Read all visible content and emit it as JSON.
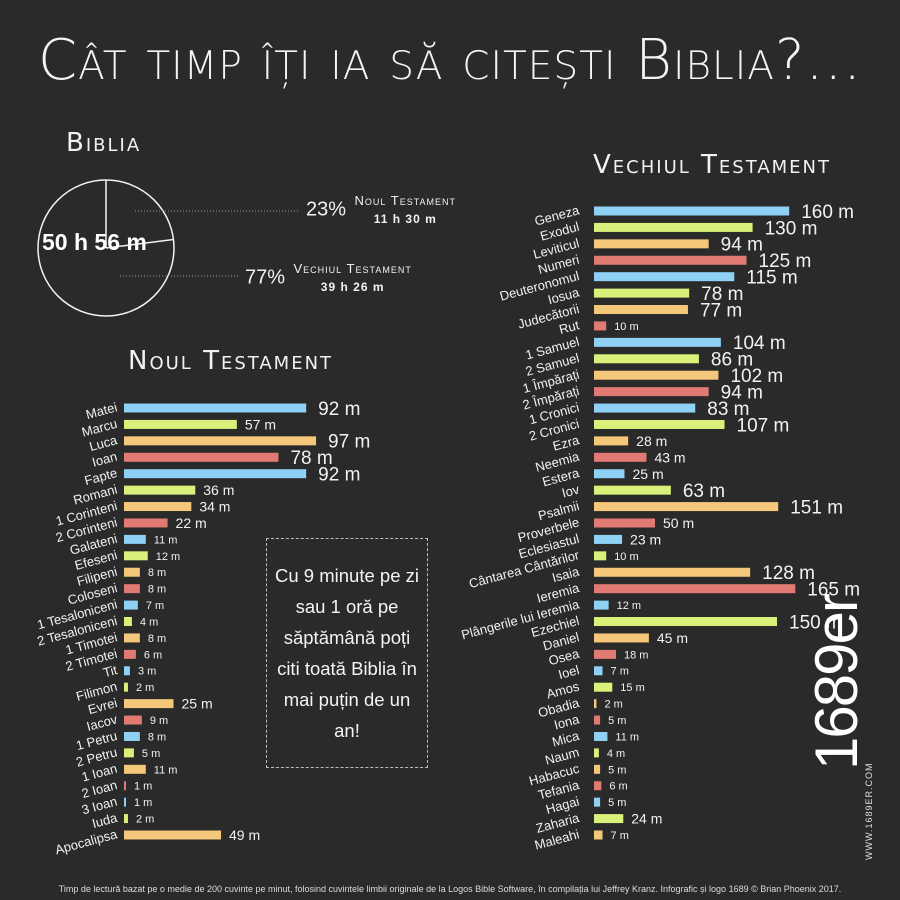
{
  "title": "Cât timp îți ia să citești Biblia?...",
  "colors": {
    "blue": "#8fd0f5",
    "green": "#d9f07a",
    "orange": "#f5c77a",
    "red": "#e07a72"
  },
  "bible": {
    "heading": "Biblia",
    "total": "50 h 56 m",
    "nt_pct": "23%",
    "nt_name": "Noul Testament",
    "nt_time": "11 h 30 m",
    "ot_pct": "77%",
    "ot_name": "Vechiul Testament",
    "ot_time": "39 h 26 m"
  },
  "callout": "Cu 9 minute pe zi sau 1 oră pe săptămână poți citi toată Biblia în mai puțin de un an!",
  "footer": "Timp de lectură bazat pe o medie de 200 cuvinte pe minut, folosind cuvintele limbii originale de la Logos Bible Software, în compilația lui Jeffrey Kranz. Infografic și logo 1689 © Brian Phoenix 2017.",
  "logo": {
    "text": "1689er",
    "url": "WWW.1689ER.COM"
  },
  "chart_data": [
    {
      "type": "pie",
      "title": "Biblia",
      "categories": [
        "Noul Testament",
        "Vechiul Testament"
      ],
      "values": [
        23,
        77
      ]
    },
    {
      "type": "bar",
      "title": "Noul Testament",
      "unit": "m",
      "categories": [
        "Matei",
        "Marcu",
        "Luca",
        "Ioan",
        "Fapte",
        "Romani",
        "1 Corinteni",
        "2 Corinteni",
        "Galateni",
        "Efeseni",
        "Filipeni",
        "Coloseni",
        "1 Tesaloniceni",
        "2 Tesaloniceni",
        "1 Timotei",
        "2 Timotei",
        "Tit",
        "Filimon",
        "Evrei",
        "Iacov",
        "1 Petru",
        "2 Petru",
        "1 Ioan",
        "2 Ioan",
        "3 Ioan",
        "Iuda",
        "Apocalipsa"
      ],
      "values": [
        92,
        57,
        97,
        78,
        92,
        36,
        34,
        22,
        11,
        12,
        8,
        8,
        7,
        4,
        8,
        6,
        3,
        2,
        25,
        9,
        8,
        5,
        11,
        1,
        1,
        2,
        49
      ]
    },
    {
      "type": "bar",
      "title": "Vechiul Testament",
      "unit": "m",
      "categories": [
        "Geneza",
        "Exodul",
        "Leviticul",
        "Numeri",
        "Deuteronomul",
        "Iosua",
        "Judecătorii",
        "Rut",
        "1 Samuel",
        "2 Samuel",
        "1 Împărați",
        "2 Împărați",
        "1 Cronici",
        "2 Cronici",
        "Ezra",
        "Neemia",
        "Estera",
        "Iov",
        "Psalmii",
        "Proverbele",
        "Eclesiastul",
        "Cântarea Cântărilor",
        "Isaia",
        "Ieremia",
        "Plângerile lui Ieremia",
        "Ezechiel",
        "Daniel",
        "Osea",
        "Ioel",
        "Amos",
        "Obadia",
        "Iona",
        "Mica",
        "Naum",
        "Habacuc",
        "Tefania",
        "Hagai",
        "Zaharia",
        "Maleahi"
      ],
      "values": [
        160,
        130,
        94,
        125,
        115,
        78,
        77,
        10,
        104,
        86,
        102,
        94,
        83,
        107,
        28,
        43,
        25,
        63,
        151,
        50,
        23,
        10,
        128,
        165,
        12,
        150,
        45,
        18,
        7,
        15,
        2,
        5,
        11,
        4,
        5,
        6,
        5,
        24,
        7
      ]
    }
  ]
}
